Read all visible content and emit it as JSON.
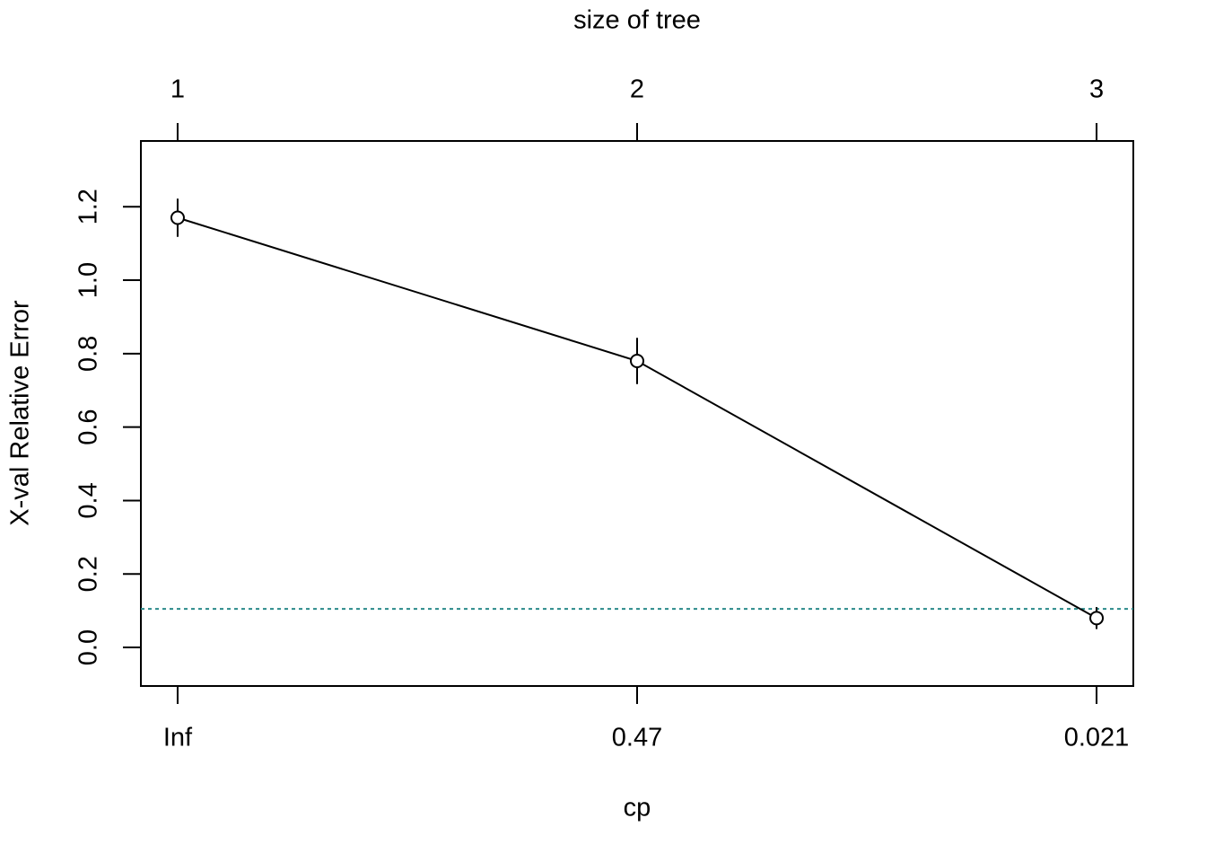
{
  "chart_data": {
    "type": "line",
    "title": "size of tree",
    "x_label": "cp",
    "y_label": "X-val Relative Error",
    "x": [
      1,
      2,
      3
    ],
    "series": [
      {
        "values": [
          1.17,
          0.78,
          0.08
        ],
        "errors": [
          0.052,
          0.063,
          0.03
        ],
        "color": "#000000"
      }
    ],
    "reference_line": {
      "value": 0.105,
      "color": "#2a8a8a"
    },
    "xlim": [
      0.92,
      3.08
    ],
    "ylim": [
      -0.105,
      1.379
    ],
    "xticks": [
      1,
      2,
      3
    ],
    "x2ticks": [
      {
        "value": 1,
        "label": "Inf"
      },
      {
        "value": 2,
        "label": "0.47"
      },
      {
        "value": 3,
        "label": "0.021"
      }
    ],
    "yticks": [
      {
        "value": 0,
        "label": "0.0"
      },
      {
        "value": 0.2,
        "label": "0.2"
      },
      {
        "value": 0.4,
        "label": "0.4"
      },
      {
        "value": 0.6,
        "label": "0.6"
      },
      {
        "value": 0.8,
        "label": "0.8"
      },
      {
        "value": 1,
        "label": "1.0"
      },
      {
        "value": 1.2,
        "label": "1.2"
      }
    ],
    "grid": false
  }
}
